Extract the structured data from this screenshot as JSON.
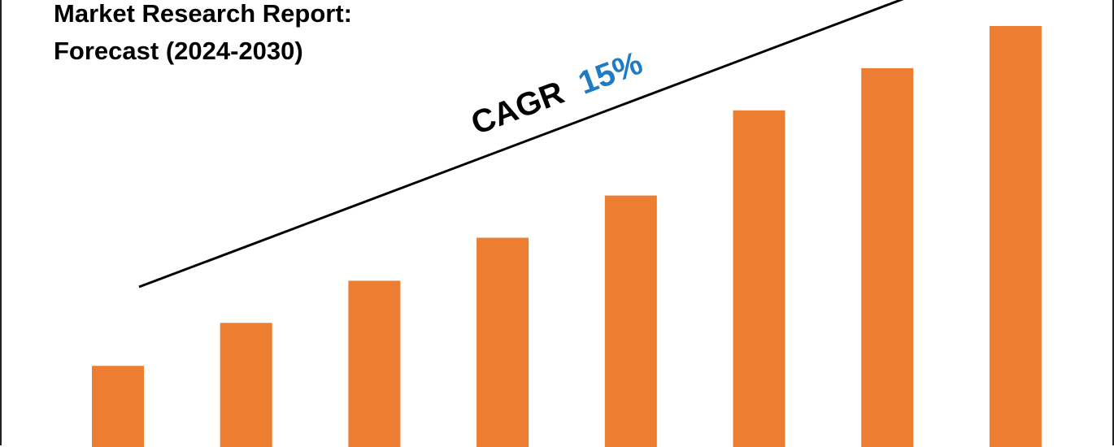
{
  "title_lines": [
    "Market Research Report:",
    "Forecast (2024-2030)"
  ],
  "annotation": {
    "prefix": "CAGR",
    "value": "15%",
    "value_color": "#1f7bc4",
    "text_color": "#000000"
  },
  "chart_data": {
    "type": "bar",
    "title": "Market Research Report: Forecast (2024-2030)",
    "categories": [
      "",
      "",
      "",
      "",
      "",
      "",
      "",
      ""
    ],
    "values": [
      100,
      153,
      205,
      258,
      310,
      415,
      467,
      519
    ],
    "ylim": [
      0,
      520
    ],
    "bar_color": "#ed7d31",
    "xlabel": "",
    "ylabel": "",
    "grid": false,
    "annotations": [
      "CAGR 15%"
    ]
  }
}
